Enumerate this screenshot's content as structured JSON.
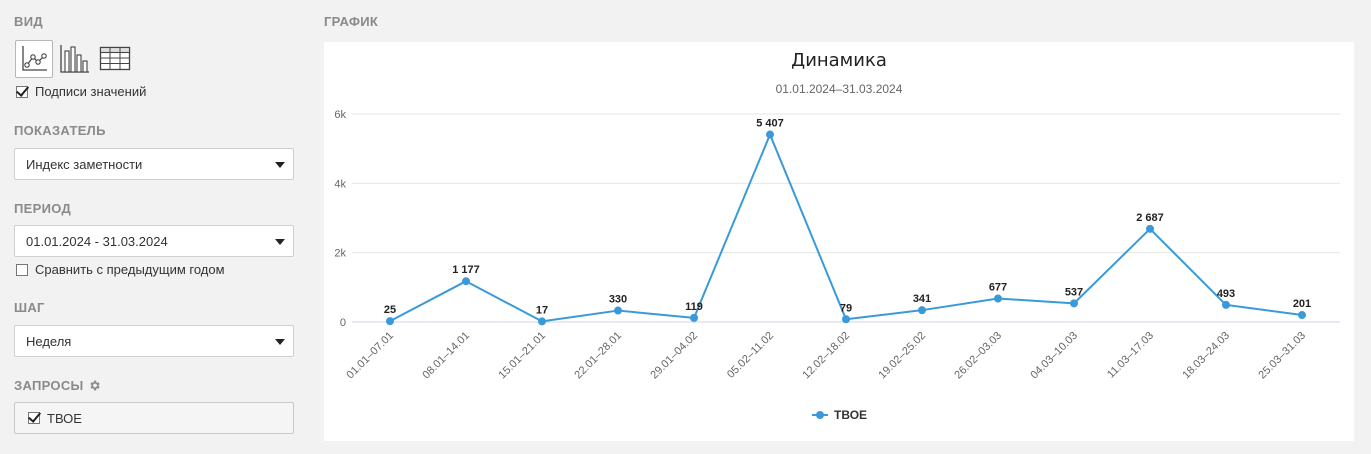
{
  "sidebar": {
    "view_label": "ВИД",
    "value_labels_checkbox": "Подписи значений",
    "metric_label": "ПОКАЗАТЕЛЬ",
    "metric_value": "Индекс заметности",
    "period_label": "ПЕРИОД",
    "period_value": "01.01.2024 - 31.03.2024",
    "compare_checkbox": "Сравнить с предыдущим годом",
    "step_label": "ШАГ",
    "step_value": "Неделя",
    "queries_label": "ЗАПРОСЫ",
    "query_item": "ТВОЕ"
  },
  "chart_section_label": "ГРАФИК",
  "colors": {
    "series": "#3a9ad9",
    "grid": "#e6e6e6",
    "label": "#222222"
  },
  "chart_data": {
    "type": "line",
    "title": "Динамика",
    "subtitle": "01.01.2024–31.03.2024",
    "categories": [
      "01.01–07.01",
      "08.01–14.01",
      "15.01–21.01",
      "22.01–28.01",
      "29.01–04.02",
      "05.02–11.02",
      "12.02–18.02",
      "19.02–25.02",
      "26.02–03.03",
      "04.03–10.03",
      "11.03–17.03",
      "18.03–24.03",
      "25.03–31.03"
    ],
    "series": [
      {
        "name": "ТВОЕ",
        "values": [
          25,
          1177,
          17,
          330,
          119,
          5407,
          79,
          341,
          677,
          537,
          2687,
          493,
          201
        ],
        "value_labels": [
          "25",
          "1 177",
          "17",
          "330",
          "119",
          "5 407",
          "79",
          "341",
          "677",
          "537",
          "2 687",
          "493",
          "201"
        ]
      }
    ],
    "y_ticks": [
      0,
      2000,
      4000,
      6000
    ],
    "y_tick_labels": [
      "0",
      "2k",
      "4k",
      "6k"
    ],
    "ylim": [
      0,
      6000
    ],
    "grid": true,
    "legend": "bottom-center"
  }
}
